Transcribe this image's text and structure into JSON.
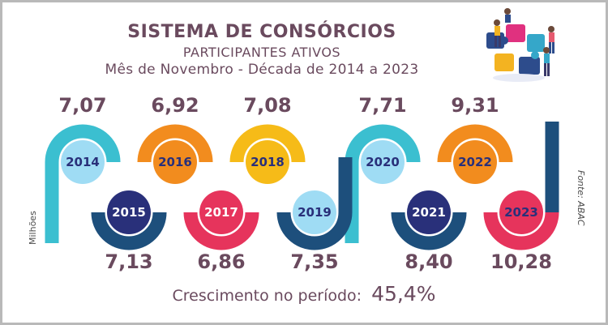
{
  "chart_data": {
    "type": "line",
    "title": "SISTEMA DE CONSÓRCIOS",
    "subtitle": "PARTICIPANTES ATIVOS",
    "period": "Mês de Novembro - Década de 2014 a 2023",
    "ylabel": "Milhões",
    "source": "Fonte: ABAC",
    "categories": [
      "2014",
      "2015",
      "2016",
      "2017",
      "2018",
      "2019",
      "2020",
      "2021",
      "2022",
      "2023"
    ],
    "value_labels": [
      "7,07",
      "7,13",
      "6,92",
      "6,86",
      "7,08",
      "7,35",
      "7,71",
      "8,40",
      "9,31",
      "10,28"
    ],
    "values": [
      7.07,
      7.13,
      6.92,
      6.86,
      7.08,
      7.35,
      7.71,
      8.4,
      9.31,
      10.28
    ],
    "growth_label": "Crescimento no período:",
    "growth_value": "45,4%"
  },
  "colors": {
    "turquoise": "#3bbfd0",
    "navy": "#1d4f7c",
    "orange": "#f28c1e",
    "red": "#e6345c",
    "yellow": "#f6bb18",
    "dark_navy": "#29307a",
    "text": "#6a4a5e",
    "light_circle": "#9fdcf4"
  },
  "icons": [
    "puzzle-team-icon"
  ]
}
